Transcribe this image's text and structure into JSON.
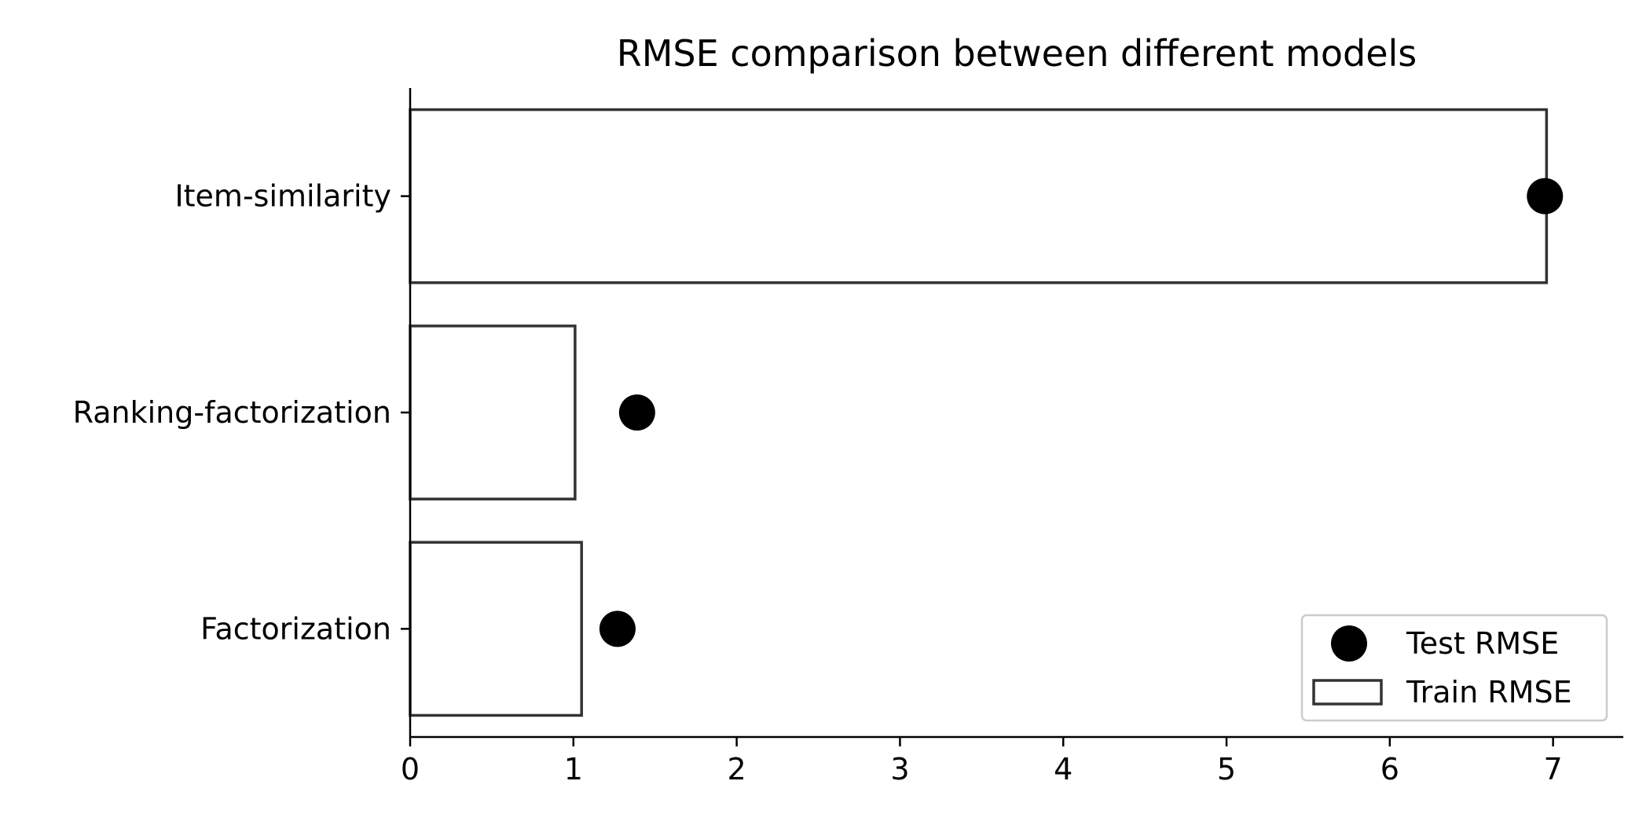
{
  "chart_data": {
    "type": "bar",
    "orientation": "horizontal",
    "title": "RMSE comparison between different models",
    "xlabel": "",
    "ylabel": "",
    "xlim": [
      0,
      7.43
    ],
    "xticks": [
      "0",
      "1",
      "2",
      "3",
      "4",
      "5",
      "6",
      "7"
    ],
    "categories": [
      "Item-similarity",
      "Ranking-factorization",
      "Factorization"
    ],
    "series": [
      {
        "name": "Train RMSE",
        "kind": "bar",
        "values": [
          6.96,
          1.01,
          1.05
        ]
      },
      {
        "name": "Test RMSE",
        "kind": "point",
        "values": [
          6.95,
          1.39,
          1.27
        ]
      }
    ],
    "legend": {
      "placement": "lower-right",
      "entries": [
        "Test RMSE",
        "Train RMSE"
      ]
    },
    "grid": false,
    "colors": {
      "bar_edge": "#333333",
      "bar_fill": "#ffffff",
      "marker": "#000000",
      "axis": "#000000"
    }
  }
}
